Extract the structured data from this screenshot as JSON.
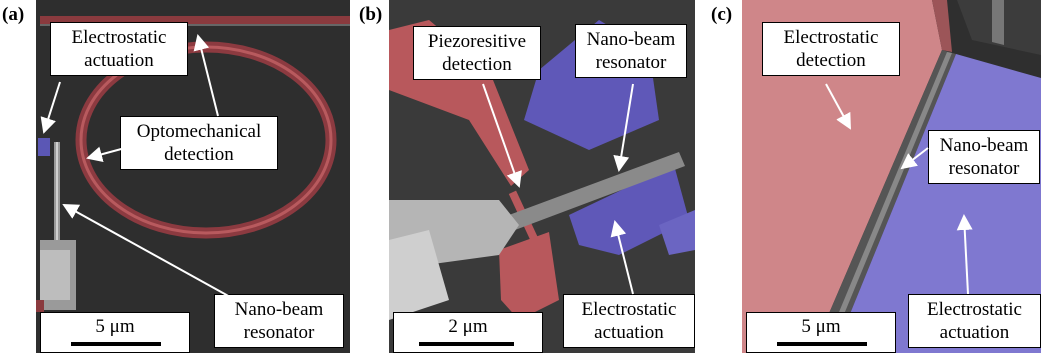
{
  "panels": {
    "a": {
      "letter": "(a)",
      "labels": {
        "electrostatic_actuation": "Electrostatic\nactuation",
        "optomechanical_detection": "Optomechanical\ndetection",
        "nano_beam_resonator": "Nano-beam\nresonator"
      },
      "scale_bar": "5 μm"
    },
    "b": {
      "letter": "(b)",
      "labels": {
        "piezoresistive_detection": "Piezoresitive\ndetection",
        "nano_beam_resonator": "Nano-beam\nresonator",
        "electrostatic_actuation": "Electrostatic\nactuation"
      },
      "scale_bar": "2 μm"
    },
    "c": {
      "letter": "(c)",
      "labels": {
        "electrostatic_detection": "Electrostatic\ndetection",
        "nano_beam_resonator": "Nano-beam\nresonator",
        "electrostatic_actuation": "Electrostatic\nactuation"
      },
      "scale_bar": "5 μm"
    }
  },
  "colors": {
    "detection_overlay": "#c9686a",
    "actuation_overlay": "#6f68c4",
    "sem_background": "#2a2a2a"
  }
}
